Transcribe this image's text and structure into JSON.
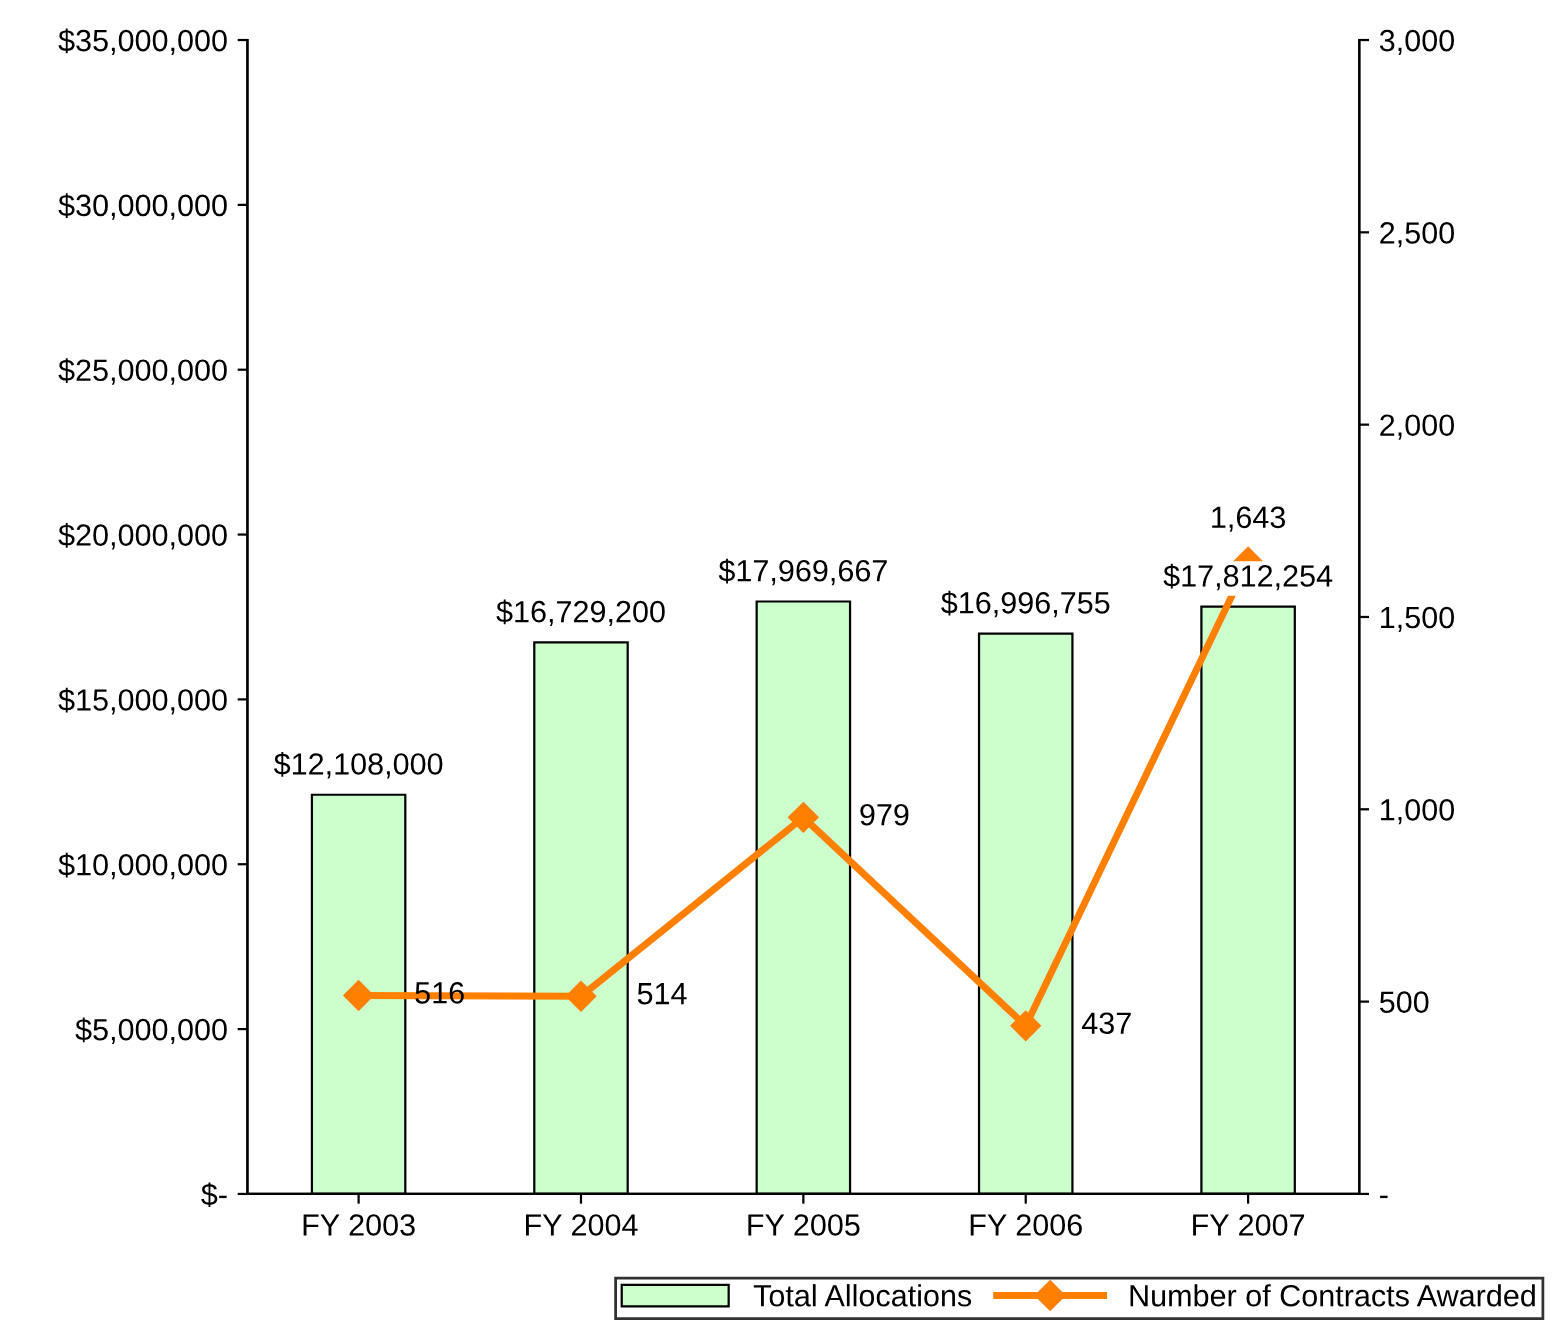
{
  "chart_data": {
    "type": "bar",
    "categories": [
      "FY 2003",
      "FY 2004",
      "FY 2005",
      "FY 2006",
      "FY 2007"
    ],
    "series": [
      {
        "name": "Total Allocations",
        "color": "#ccffcc",
        "values": [
          12108000,
          16729200,
          17969667,
          16996755,
          17812254
        ],
        "value_labels": [
          "$12,108,000",
          "$16,729,200",
          "$17,969,667",
          "$16,996,755",
          "$17,812,254"
        ]
      },
      {
        "name": "Number of Contracts Awarded",
        "type": "line",
        "axis": "y2",
        "color": "#ff8000",
        "marker": "diamond",
        "values": [
          516,
          514,
          979,
          437,
          1643
        ],
        "value_labels": [
          "516",
          "514",
          "979",
          "437",
          "1,643"
        ]
      }
    ],
    "ylim": [
      0,
      35000000
    ],
    "yticks": [
      {
        "value": 0,
        "label": "$-"
      },
      {
        "value": 5000000,
        "label": "$5,000,000"
      },
      {
        "value": 10000000,
        "label": "$10,000,000"
      },
      {
        "value": 15000000,
        "label": "$15,000,000"
      },
      {
        "value": 20000000,
        "label": "$20,000,000"
      },
      {
        "value": 25000000,
        "label": "$25,000,000"
      },
      {
        "value": 30000000,
        "label": "$30,000,000"
      },
      {
        "value": 35000000,
        "label": "$35,000,000"
      }
    ],
    "y2lim": [
      0,
      3000
    ],
    "y2ticks": [
      {
        "value": 0,
        "label": "-"
      },
      500,
      {
        "value": 1000,
        "label": "1,000"
      },
      {
        "value": 1500,
        "label": "1,500"
      },
      {
        "value": 2000,
        "label": "2,000"
      },
      {
        "value": 2500,
        "label": "2,500"
      },
      {
        "value": 3000,
        "label": "3,000"
      }
    ],
    "grid": false,
    "legend": "bottom right"
  }
}
